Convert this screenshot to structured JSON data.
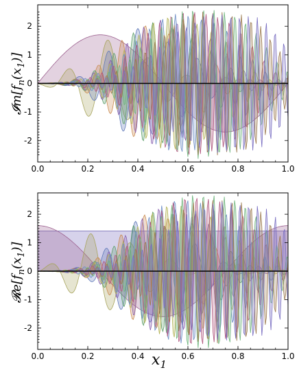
{
  "palette": [
    "#9b5f8e",
    "#a6a35a",
    "#5f78b8",
    "#c98a4f",
    "#5e9f6a",
    "#8a62b0",
    "#b3b356",
    "#6f8fc6",
    "#b0567d",
    "#6fb57d",
    "#9c7a4e",
    "#7a6fc2"
  ],
  "chart_data": [
    {
      "type": "area",
      "ylabel": "𝓘m[f_n(x_1)]",
      "xlabel": "",
      "xlim": [
        0,
        1
      ],
      "ylim": [
        -2.75,
        2.75
      ],
      "xticks": [
        0.0,
        0.2,
        0.4,
        0.6,
        0.8,
        1.0
      ],
      "yticks": [
        -2,
        -1,
        0,
        1,
        2
      ],
      "xtick_labels": [
        "0.0",
        "0.2",
        "0.4",
        "0.6",
        "0.8",
        "1.0"
      ],
      "ytick_labels": [
        "-2",
        "-1",
        "0",
        "1",
        "2"
      ],
      "grid": false,
      "n_series": 12,
      "series_peak_amplitude": [
        1.7,
        1.5,
        1.9,
        2.0,
        2.1,
        2.2,
        2.3,
        2.4,
        2.5,
        2.6,
        2.5,
        2.4
      ],
      "series_peak_x": [
        0.25,
        0.28,
        0.4,
        0.43,
        0.46,
        0.49,
        0.52,
        0.55,
        0.58,
        0.62,
        0.66,
        0.7
      ]
    },
    {
      "type": "area",
      "ylabel": "𝓡e[f_n(x_1)]",
      "xlabel": "x_1",
      "xlim": [
        0,
        1
      ],
      "ylim": [
        -2.75,
        2.75
      ],
      "xticks": [
        0.0,
        0.2,
        0.4,
        0.6,
        0.8,
        1.0
      ],
      "yticks": [
        -2,
        -1,
        0,
        1,
        2
      ],
      "xtick_labels": [
        "0.0",
        "0.2",
        "0.4",
        "0.6",
        "0.8",
        "1.0"
      ],
      "ytick_labels": [
        "-2",
        "-1",
        "0",
        "1",
        "2"
      ],
      "grid": false,
      "constant_series_value": 1.41,
      "n_series": 12,
      "series_peak_amplitude": [
        1.6,
        1.4,
        1.8,
        2.0,
        2.1,
        2.2,
        2.3,
        2.5,
        2.6,
        2.7,
        2.5,
        2.4
      ],
      "series_peak_x": [
        0.0,
        0.25,
        0.42,
        0.45,
        0.48,
        0.5,
        0.53,
        0.56,
        0.6,
        0.63,
        0.67,
        0.71
      ]
    }
  ],
  "labels": {
    "top_ylabel_pre": "𝓘m[f",
    "top_ylabel_sub": "n",
    "top_ylabel_post": "(x",
    "top_ylabel_sub2": "1",
    "top_ylabel_end": ")]",
    "bottom_ylabel_pre": "𝓡e[f",
    "bottom_ylabel_sub": "n",
    "bottom_ylabel_post": "(x",
    "bottom_ylabel_sub2": "1",
    "bottom_ylabel_end": ")]",
    "xlabel_main": "x",
    "xlabel_sub": "1"
  }
}
